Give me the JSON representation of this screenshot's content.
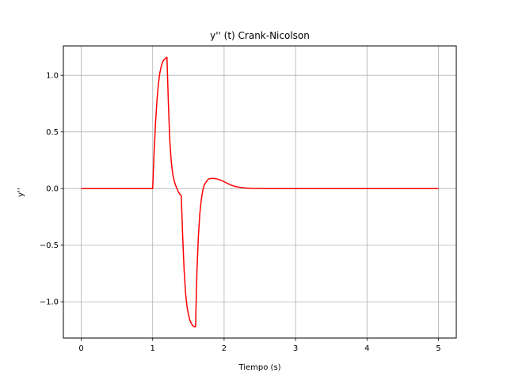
{
  "chart_data": {
    "type": "line",
    "title": "y'' (t) Crank-Nicolson",
    "xlabel": "Tiempo (s)",
    "ylabel": "y''",
    "xlim": [
      -0.25,
      5.25
    ],
    "ylim": [
      -1.32,
      1.26
    ],
    "xticks": [
      0,
      1,
      2,
      3,
      4,
      5
    ],
    "xtick_labels": [
      "0",
      "1",
      "2",
      "3",
      "4",
      "5"
    ],
    "yticks": [
      -1.0,
      -0.5,
      0.0,
      0.5,
      1.0
    ],
    "ytick_labels": [
      "−1.0",
      "−0.5",
      "0.0",
      "0.5",
      "1.0"
    ],
    "grid": true,
    "series": [
      {
        "color": "#ff0000",
        "x": [
          0,
          1.0,
          1.02,
          1.04,
          1.06,
          1.08,
          1.1,
          1.12,
          1.14,
          1.16,
          1.18,
          1.2,
          1.22,
          1.24,
          1.26,
          1.28,
          1.3,
          1.32,
          1.34,
          1.36,
          1.38,
          1.4,
          1.42,
          1.44,
          1.46,
          1.48,
          1.5,
          1.52,
          1.54,
          1.56,
          1.58,
          1.6,
          1.62,
          1.64,
          1.66,
          1.68,
          1.7,
          1.72,
          1.75,
          1.78,
          1.82,
          1.86,
          1.9,
          1.95,
          2.0,
          2.05,
          2.1,
          2.15,
          2.2,
          2.3,
          2.4,
          2.5,
          2.6,
          3.0,
          4.0,
          5.0
        ],
        "y": [
          0.0,
          0.0,
          0.32,
          0.58,
          0.78,
          0.92,
          1.02,
          1.08,
          1.12,
          1.14,
          1.15,
          1.16,
          0.75,
          0.42,
          0.24,
          0.13,
          0.07,
          0.03,
          0.0,
          -0.03,
          -0.05,
          -0.06,
          -0.42,
          -0.72,
          -0.92,
          -1.04,
          -1.11,
          -1.16,
          -1.19,
          -1.21,
          -1.22,
          -1.22,
          -0.72,
          -0.42,
          -0.22,
          -0.1,
          -0.02,
          0.03,
          0.06,
          0.085,
          0.09,
          0.09,
          0.085,
          0.075,
          0.06,
          0.045,
          0.03,
          0.02,
          0.013,
          0.005,
          0.0015,
          0.0005,
          0.0,
          0.0,
          0.0,
          0.0
        ]
      }
    ]
  }
}
